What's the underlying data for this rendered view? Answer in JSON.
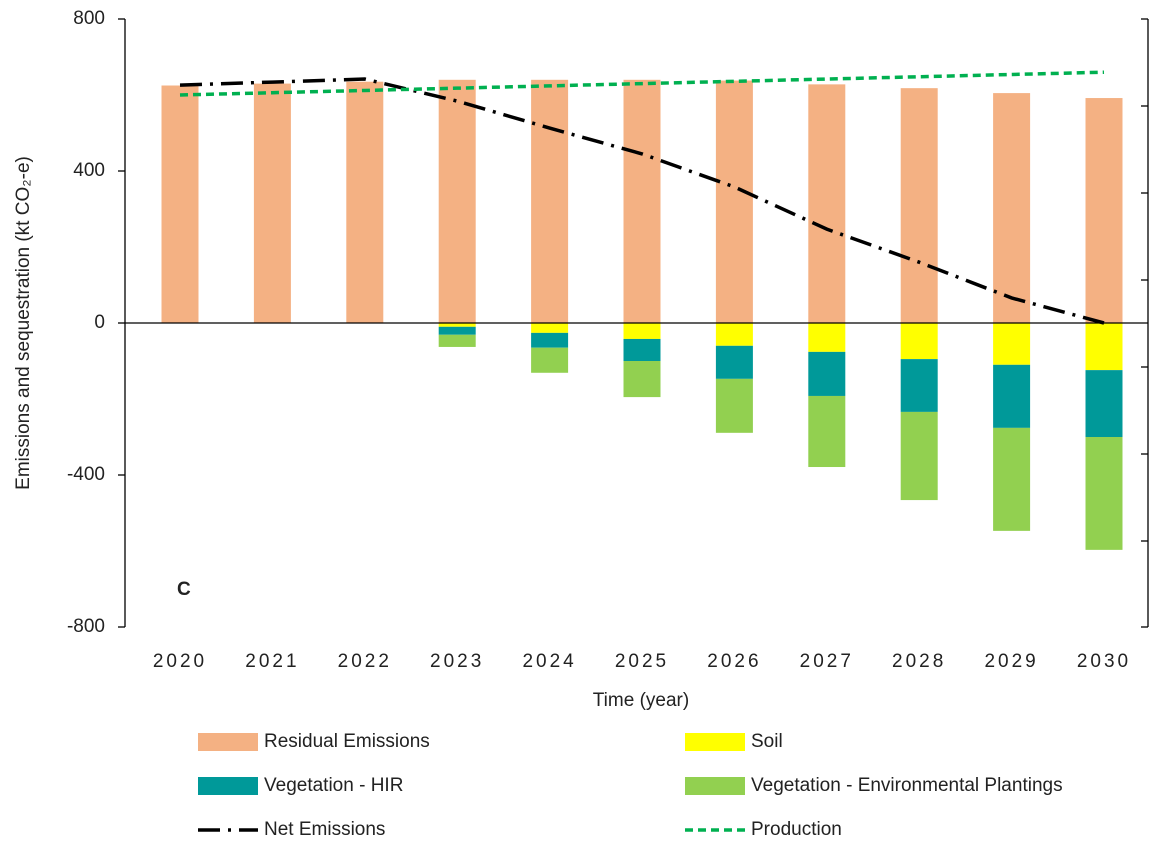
{
  "chart_data": {
    "type": "bar",
    "y_label": "Emissions and sequestration (kt CO₂-e)",
    "x_label": "Time (year)",
    "annotation": "C",
    "categories": [
      "2020",
      "2021",
      "2022",
      "2023",
      "2024",
      "2025",
      "2026",
      "2027",
      "2028",
      "2029",
      "2030"
    ],
    "ylim": [
      -800,
      800
    ],
    "yticks": [
      -800,
      -400,
      0,
      400,
      800
    ],
    "grid": false,
    "series": [
      {
        "name": "Residual Emissions",
        "type": "bar",
        "color": "#f4b183",
        "values": [
          625,
          630,
          635,
          640,
          640,
          640,
          638,
          628,
          618,
          605,
          592
        ]
      },
      {
        "name": "Soil",
        "type": "bar",
        "color": "#ffff00",
        "values": [
          0,
          0,
          0,
          -10,
          -26,
          -42,
          -60,
          -76,
          -95,
          -110,
          -124
        ]
      },
      {
        "name": "Vegetation - HIR",
        "type": "bar",
        "color": "#009999",
        "values": [
          0,
          0,
          0,
          -21,
          -39,
          -58,
          -87,
          -116,
          -139,
          -166,
          -176
        ]
      },
      {
        "name": "Vegetation - Environmental Plantings",
        "type": "bar",
        "color": "#92d050",
        "values": [
          0,
          0,
          0,
          -32,
          -66,
          -95,
          -142,
          -187,
          -232,
          -271,
          -297
        ]
      },
      {
        "name": "Net Emissions",
        "type": "line",
        "dash": "dashdot",
        "color": "#000000",
        "values": [
          626,
          634,
          642,
          584,
          513,
          445,
          358,
          247,
          160,
          66,
          0
        ]
      },
      {
        "name": "Production",
        "type": "line",
        "dash": "dash",
        "color": "#00b050",
        "values": [
          600,
          606,
          612,
          618,
          624,
          630,
          636,
          642,
          648,
          654,
          660
        ]
      }
    ]
  }
}
